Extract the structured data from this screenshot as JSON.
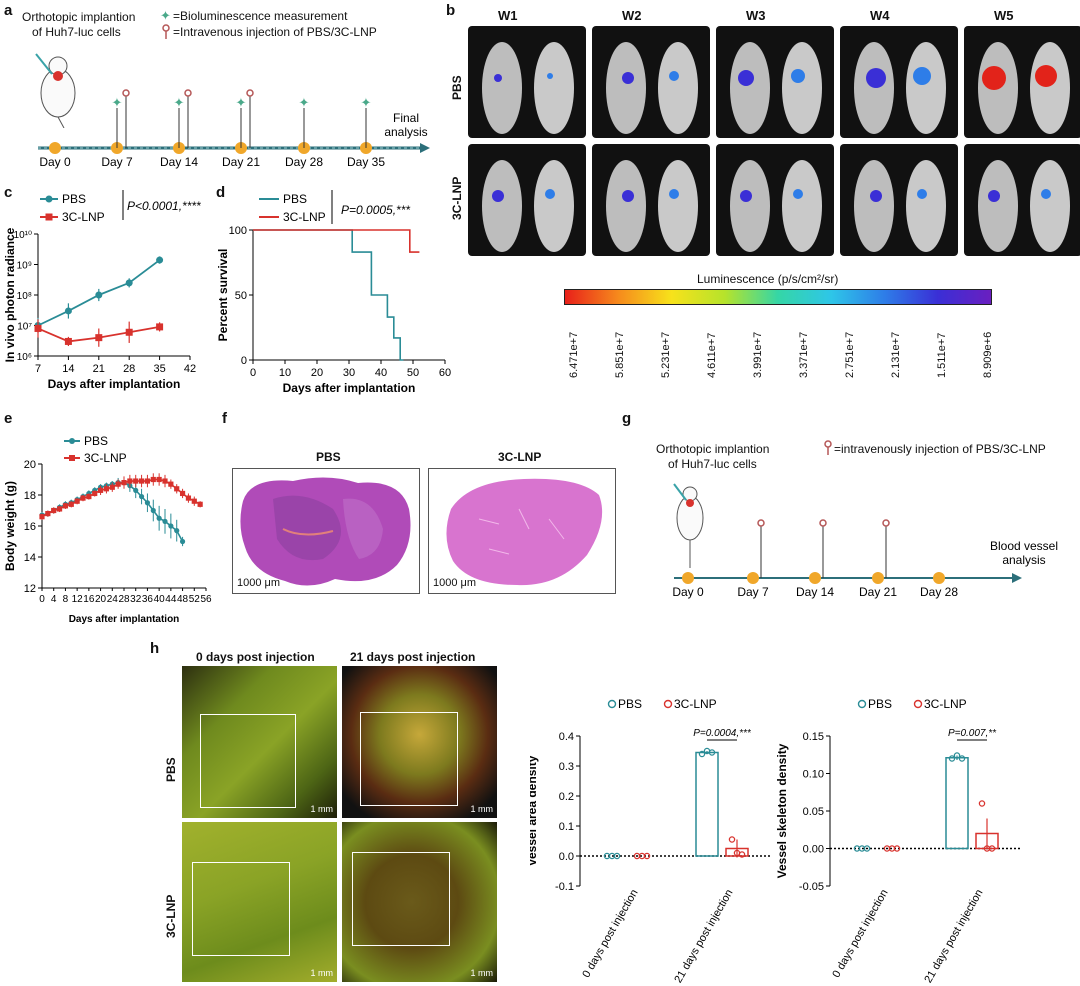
{
  "panel_labels": {
    "a": "a",
    "b": "b",
    "c": "c",
    "d": "d",
    "e": "e",
    "f": "f",
    "g": "g",
    "h": "h"
  },
  "colors": {
    "pbs": "#2a8c96",
    "lnp": "#d8322d",
    "timeline": "#2c6f7a",
    "dot": "#f0a72a",
    "star": "#4aa98a",
    "pin": "#b55757"
  },
  "panel_a": {
    "implant_line1": "Orthotopic implantion",
    "implant_line2": "of Huh7-luc cells",
    "legend_biolum": "=Bioluminescence measurement",
    "legend_injection": "=Intravenous injection of PBS/3C-LNP",
    "days": [
      "Day 0",
      "Day 7",
      "Day 14",
      "Day 21",
      "Day 28",
      "Day 35"
    ],
    "final_line1": "Final",
    "final_line2": "analysis",
    "icons": {
      "star": "star-icon",
      "pin": "injection-pin-icon",
      "mouse": "mouse-icon"
    }
  },
  "panel_b": {
    "weeks": [
      "W1",
      "W2",
      "W3",
      "W4",
      "W5"
    ],
    "rows": [
      "PBS",
      "3C-LNP"
    ],
    "colorbar_title": "Luminescence (p/s/cm²/sr)",
    "colorbar_ticks": [
      "6.471e+7",
      "5.851e+7",
      "5.231e+7",
      "4.611e+7",
      "3.991e+7",
      "3.371e+7",
      "2.751e+7",
      "2.131e+7",
      "1.511e+7",
      "8.909e+6"
    ]
  },
  "panel_c": {
    "legend": [
      "PBS",
      "3C-LNP"
    ],
    "pvalue": "P<0.0001,****",
    "ylabel": "In vivo photon radiance",
    "xlabel": "Days after implantation",
    "yticks": [
      "10¹⁰",
      "10⁹",
      "10⁸",
      "10⁷",
      "10⁶"
    ],
    "xticks": [
      "7",
      "14",
      "21",
      "28",
      "35",
      "42"
    ]
  },
  "panel_d": {
    "legend": [
      "PBS",
      "3C-LNP"
    ],
    "pvalue": "P=0.0005,***",
    "ylabel": "Percent survival",
    "xlabel": "Days after implantation",
    "yticks": [
      "100",
      "50",
      "0"
    ],
    "xticks": [
      "0",
      "10",
      "20",
      "30",
      "40",
      "50",
      "60"
    ]
  },
  "panel_e": {
    "legend": [
      "PBS",
      "3C-LNP"
    ],
    "ylabel": "Body weight (g)",
    "xlabel": "Days after implantation",
    "yticks": [
      "20",
      "18",
      "16",
      "14",
      "12"
    ],
    "xticks": [
      "0",
      "4",
      "8",
      "12",
      "16",
      "20",
      "24",
      "28",
      "32",
      "36",
      "40",
      "44",
      "48",
      "52",
      "56"
    ]
  },
  "panel_f": {
    "titles": [
      "PBS",
      "3C-LNP"
    ],
    "scalebars": [
      "1000 μm",
      "1000 μm"
    ]
  },
  "panel_g": {
    "implant_line1": "Orthotopic implantion",
    "implant_line2": "of Huh7-luc cells",
    "legend_injection": "=intravenously injection of PBS/3C-LNP",
    "days": [
      "Day 0",
      "Day 7",
      "Day 14",
      "Day 21",
      "Day 28"
    ],
    "final_line1": "Blood vessel",
    "final_line2": "analysis"
  },
  "panel_h": {
    "col_titles": [
      "0 days post injection",
      "21 days post injection"
    ],
    "rows": [
      "PBS",
      "3C-LNP"
    ],
    "scale": "1 mm",
    "legend": [
      "PBS",
      "3C-LNP"
    ],
    "area": {
      "ylabel": "Vessel area density",
      "pvalue": "P=0.0004,***",
      "yticks": [
        "0.4",
        "0.3",
        "0.2",
        "0.1",
        "0.0",
        "-0.1"
      ]
    },
    "skeleton": {
      "ylabel": "Vessel skeleton density",
      "pvalue": "P=0.007,**",
      "yticks": [
        "0.15",
        "0.10",
        "0.05",
        "0.00",
        "-0.05"
      ]
    },
    "categories": [
      "0 days post injection",
      "21 days post injection"
    ]
  },
  "chart_data": [
    {
      "id": "c",
      "type": "line",
      "yscale": "log",
      "x": [
        7,
        14,
        21,
        28,
        35
      ],
      "ylabel": "In vivo photon radiance",
      "xlabel": "Days after implantation",
      "xlim": [
        7,
        42
      ],
      "ylim": [
        1000000,
        10000000000
      ],
      "series": [
        {
          "name": "PBS",
          "values": [
            10000000,
            30000000,
            100000000,
            250000000,
            1400000000
          ],
          "err": [
            0.25,
            0.25,
            0.2,
            0.15,
            0.12
          ]
        },
        {
          "name": "3C-LNP",
          "values": [
            8000000,
            3000000,
            4000000,
            6000000,
            9000000
          ],
          "err": [
            0.3,
            0.15,
            0.3,
            0.35,
            0.15
          ]
        }
      ]
    },
    {
      "id": "d",
      "type": "line",
      "step": true,
      "xlabel": "Days after implantation",
      "ylabel": "Percent survival",
      "xlim": [
        0,
        60
      ],
      "ylim": [
        0,
        100
      ],
      "series": [
        {
          "name": "PBS",
          "x": [
            0,
            31,
            31,
            37,
            37,
            42,
            42,
            44,
            44,
            46,
            46,
            47,
            47
          ],
          "values": [
            100,
            100,
            83,
            83,
            50,
            50,
            33,
            33,
            17,
            17,
            0,
            0,
            0
          ]
        },
        {
          "name": "3C-LNP",
          "x": [
            0,
            49,
            49,
            52
          ],
          "values": [
            100,
            100,
            83,
            83
          ]
        }
      ]
    },
    {
      "id": "e",
      "type": "line",
      "xlabel": "Days after implantation",
      "ylabel": "Body weight (g)",
      "xlim": [
        0,
        56
      ],
      "ylim": [
        12,
        20
      ],
      "series": [
        {
          "name": "PBS",
          "x": [
            0,
            2,
            4,
            6,
            8,
            10,
            12,
            14,
            16,
            18,
            20,
            22,
            24,
            26,
            28,
            30,
            32,
            34,
            36,
            38,
            40,
            42,
            44,
            46,
            48
          ],
          "values": [
            16.7,
            16.8,
            17.0,
            17.2,
            17.4,
            17.5,
            17.7,
            17.9,
            18.1,
            18.3,
            18.5,
            18.6,
            18.7,
            18.8,
            18.8,
            18.6,
            18.3,
            17.9,
            17.5,
            17.0,
            16.5,
            16.3,
            16.0,
            15.7,
            15.0
          ],
          "err": [
            0.2,
            0.2,
            0.2,
            0.2,
            0.2,
            0.2,
            0.2,
            0.2,
            0.2,
            0.2,
            0.2,
            0.2,
            0.2,
            0.3,
            0.3,
            0.4,
            0.5,
            0.5,
            0.6,
            0.7,
            0.8,
            0.8,
            0.8,
            0.7,
            0.3
          ]
        },
        {
          "name": "3C-LNP",
          "x": [
            0,
            2,
            4,
            6,
            8,
            10,
            12,
            14,
            16,
            18,
            20,
            22,
            24,
            26,
            28,
            30,
            32,
            34,
            36,
            38,
            40,
            42,
            44,
            46,
            48,
            50,
            52,
            54
          ],
          "values": [
            16.6,
            16.8,
            17.0,
            17.1,
            17.3,
            17.4,
            17.6,
            17.8,
            17.9,
            18.1,
            18.3,
            18.4,
            18.5,
            18.7,
            18.8,
            18.9,
            18.9,
            18.9,
            18.9,
            19.0,
            19.0,
            18.9,
            18.7,
            18.4,
            18.1,
            17.8,
            17.6,
            17.4
          ],
          "err": [
            0.2,
            0.2,
            0.2,
            0.2,
            0.2,
            0.2,
            0.2,
            0.2,
            0.2,
            0.2,
            0.3,
            0.3,
            0.3,
            0.3,
            0.4,
            0.4,
            0.4,
            0.4,
            0.4,
            0.4,
            0.4,
            0.4,
            0.3,
            0.3,
            0.3,
            0.3,
            0.3,
            0.2
          ]
        }
      ]
    },
    {
      "id": "h-area",
      "type": "bar",
      "categories": [
        "0 days post injection",
        "21 days post injection"
      ],
      "ylabel": "Vessel area density",
      "ylim": [
        -0.1,
        0.4
      ],
      "series": [
        {
          "name": "PBS",
          "values": [
            0.0,
            0.345
          ],
          "sem": [
            0.0,
            0.005
          ],
          "points": [
            [
              0,
              0,
              0
            ],
            [
              0.34,
              0.35,
              0.345
            ]
          ]
        },
        {
          "name": "3C-LNP",
          "values": [
            0.0,
            0.025
          ],
          "sem": [
            0.0,
            0.03
          ],
          "points": [
            [
              0,
              0,
              0
            ],
            [
              0.055,
              0.01,
              0.005
            ]
          ]
        }
      ]
    },
    {
      "id": "h-skeleton",
      "type": "bar",
      "categories": [
        "0 days post injection",
        "21 days post injection"
      ],
      "ylabel": "Vessel skeleton density",
      "ylim": [
        -0.05,
        0.15
      ],
      "series": [
        {
          "name": "PBS",
          "values": [
            0.0,
            0.121
          ],
          "sem": [
            0.0,
            0.003
          ],
          "points": [
            [
              0,
              0,
              0
            ],
            [
              0.12,
              0.124,
              0.12
            ]
          ]
        },
        {
          "name": "3C-LNP",
          "values": [
            0.0,
            0.02
          ],
          "sem": [
            0.0,
            0.02
          ],
          "points": [
            [
              0,
              0,
              0
            ],
            [
              0.06,
              0.0,
              0.0
            ]
          ]
        }
      ]
    }
  ]
}
